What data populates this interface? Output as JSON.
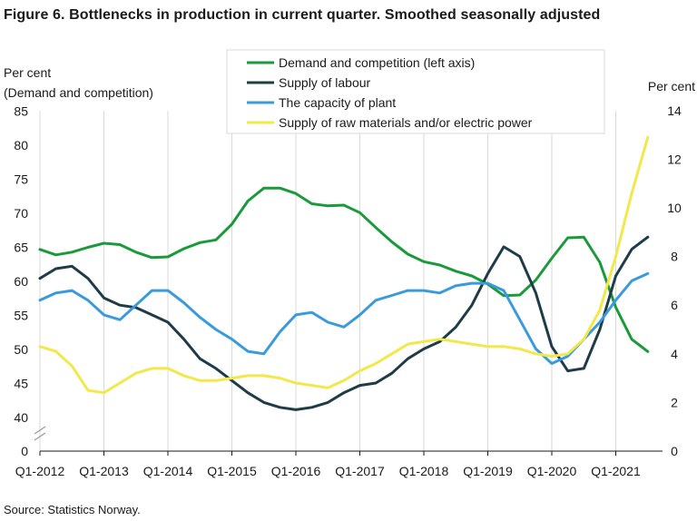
{
  "title": "Figure 6. Bottlenecks in production in current quarter. Smoothed seasonally adjusted",
  "source": "Source: Statistics Norway.",
  "chart_data": {
    "type": "line",
    "left_axis": {
      "label_line1": "Per cent",
      "label_line2": "(Demand and competition)",
      "ticks": [
        0,
        40,
        45,
        50,
        55,
        60,
        65,
        70,
        75,
        80,
        85
      ],
      "broken": true,
      "range": [
        40,
        85
      ]
    },
    "right_axis": {
      "label": "Per cent",
      "ticks": [
        0,
        2,
        4,
        6,
        8,
        10,
        12,
        14
      ],
      "range": [
        0,
        14
      ]
    },
    "x_tick_labels": [
      "Q1-2012",
      "Q1-2013",
      "Q1-2014",
      "Q1-2015",
      "Q1-2016",
      "Q1-2017",
      "Q1-2018",
      "Q1-2019",
      "Q1-2020",
      "Q1-2021"
    ],
    "x_start": "Q1-2012",
    "grid": "vertical lines at each Q1",
    "legend_position": "top-center",
    "series": [
      {
        "name": "Demand and competition (left axis)",
        "axis": "left",
        "color": "#1a9a3a",
        "values": [
          64.7,
          63.9,
          64.3,
          65.0,
          65.6,
          65.4,
          64.3,
          63.5,
          63.6,
          64.8,
          65.7,
          66.1,
          68.4,
          71.8,
          73.7,
          73.7,
          72.9,
          71.4,
          71.1,
          71.2,
          70.1,
          67.9,
          65.8,
          64.0,
          62.9,
          62.4,
          61.5,
          60.8,
          59.6,
          57.9,
          58.0,
          60.2,
          63.4,
          66.4,
          66.5,
          62.8,
          56.2,
          51.5,
          49.7
        ]
      },
      {
        "name": "Supply of labour",
        "axis": "right",
        "color": "#1d3c47",
        "values": [
          7.1,
          7.5,
          7.6,
          7.1,
          6.3,
          6.0,
          5.9,
          5.6,
          5.3,
          4.6,
          3.8,
          3.4,
          2.9,
          2.4,
          2.0,
          1.8,
          1.7,
          1.8,
          2.0,
          2.4,
          2.7,
          2.8,
          3.2,
          3.8,
          4.2,
          4.5,
          5.1,
          6.0,
          7.3,
          8.4,
          8.0,
          6.5,
          4.3,
          3.3,
          3.4,
          5.0,
          7.2,
          8.3,
          8.8
        ]
      },
      {
        "name": "The capacity of plant",
        "axis": "right",
        "color": "#3a9bdc",
        "values": [
          6.2,
          6.5,
          6.6,
          6.2,
          5.6,
          5.4,
          6.0,
          6.6,
          6.6,
          6.1,
          5.5,
          5.0,
          4.6,
          4.1,
          4.0,
          4.9,
          5.6,
          5.7,
          5.3,
          5.1,
          5.6,
          6.2,
          6.4,
          6.6,
          6.6,
          6.5,
          6.8,
          6.9,
          6.9,
          6.6,
          5.4,
          4.2,
          3.6,
          3.9,
          4.6,
          5.3,
          6.2,
          7.0,
          7.3
        ]
      },
      {
        "name": "Supply of raw materials and/or electric power",
        "axis": "right",
        "color": "#f2e84a",
        "values": [
          4.3,
          4.1,
          3.5,
          2.5,
          2.4,
          2.8,
          3.2,
          3.4,
          3.4,
          3.1,
          2.9,
          2.9,
          3.0,
          3.1,
          3.1,
          3.0,
          2.8,
          2.7,
          2.6,
          2.9,
          3.3,
          3.6,
          4.0,
          4.4,
          4.5,
          4.6,
          4.5,
          4.4,
          4.3,
          4.3,
          4.2,
          4.0,
          3.9,
          4.0,
          4.6,
          5.8,
          8.0,
          10.6,
          12.9
        ]
      }
    ]
  }
}
